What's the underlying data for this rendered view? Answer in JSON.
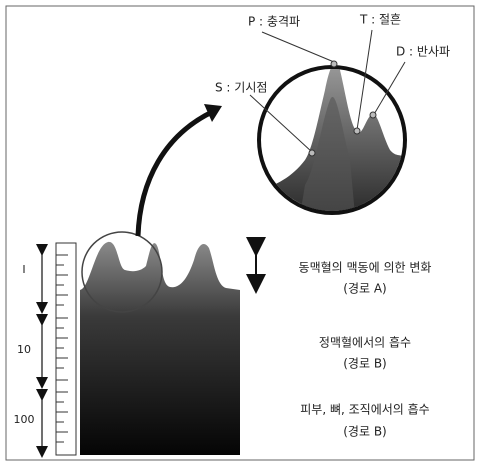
{
  "wave_points": [
    {
      "label": "P : 충격파"
    },
    {
      "label": "T : 절흔"
    },
    {
      "label": "D : 반사파"
    },
    {
      "label": "S : 기시점"
    }
  ],
  "layers": [
    {
      "scale": "I",
      "description": "동맥혈의 맥동에 의한 변화",
      "path": "(경로 A)"
    },
    {
      "scale": "10",
      "description": "정맥혈에서의 흡수",
      "path": "(경로 B)"
    },
    {
      "scale": "100",
      "description": "피부, 뼈, 조직에서의 흡수",
      "path": "(경로 B)"
    }
  ]
}
